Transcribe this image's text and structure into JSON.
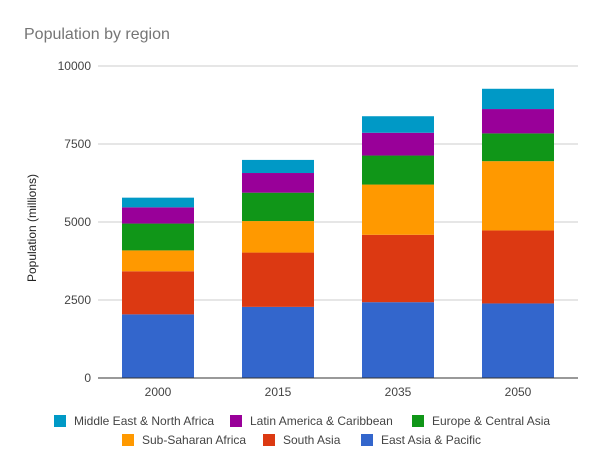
{
  "chart_data": {
    "type": "bar",
    "stacked": true,
    "title": "Population by region",
    "xlabel": "",
    "ylabel": "Population (millions)",
    "ylim": [
      0,
      10000
    ],
    "yticks": [
      0,
      2500,
      5000,
      7500,
      10000
    ],
    "grid": true,
    "legend_position": "bottom",
    "categories": [
      "2000",
      "2015",
      "2035",
      "2050"
    ],
    "series": [
      {
        "name": "East Asia & Pacific",
        "color": "#3366cc",
        "values": [
          2040,
          2280,
          2430,
          2390
        ]
      },
      {
        "name": "South Asia",
        "color": "#dc3912",
        "values": [
          1380,
          1740,
          2160,
          2340
        ]
      },
      {
        "name": "Sub-Saharan Africa",
        "color": "#ff9900",
        "values": [
          670,
          1010,
          1610,
          2220
        ]
      },
      {
        "name": "Europe & Central Asia",
        "color": "#109618",
        "values": [
          860,
          910,
          930,
          890
        ]
      },
      {
        "name": "Latin America & Caribbean",
        "color": "#990099",
        "values": [
          520,
          630,
          730,
          780
        ]
      },
      {
        "name": "Middle East & North Africa",
        "color": "#0099c6",
        "values": [
          310,
          420,
          530,
          650
        ]
      }
    ],
    "legend_order": [
      "Middle East & North Africa",
      "Latin America & Caribbean",
      "Europe & Central Asia",
      "Sub-Saharan Africa",
      "South Asia",
      "East Asia & Pacific"
    ]
  }
}
